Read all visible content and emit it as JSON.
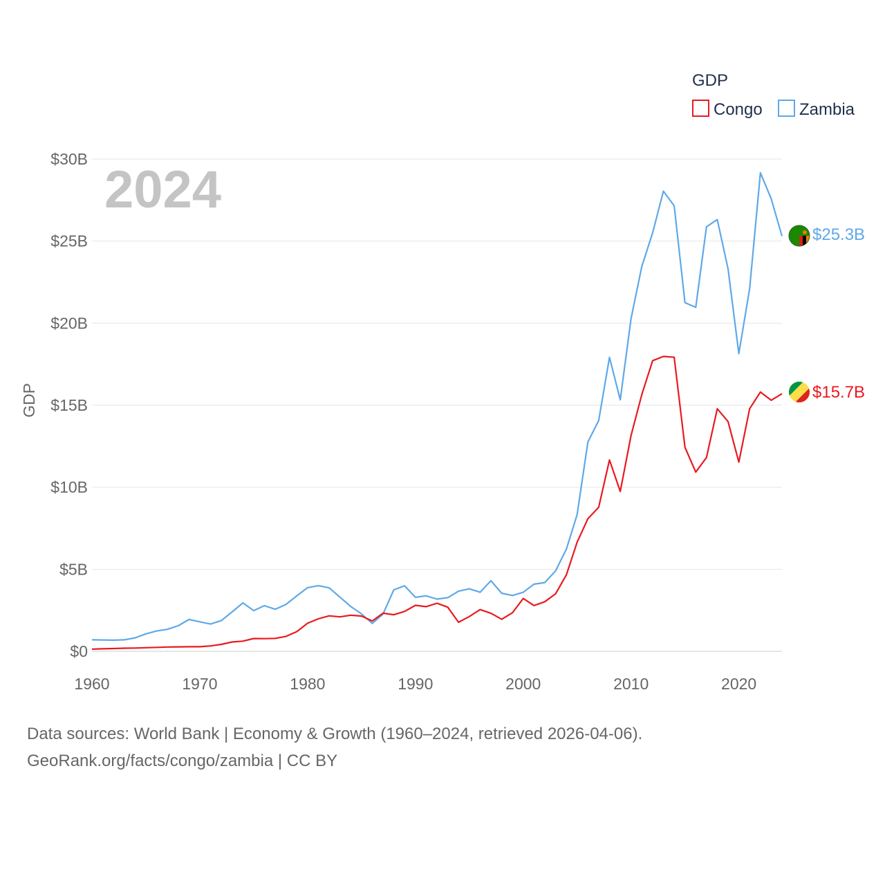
{
  "chart_data": {
    "type": "line",
    "title": "GDP",
    "year_label": "2024",
    "ylabel": "GDP",
    "xlabel": "",
    "xlim": [
      1960,
      2024
    ],
    "ylim": [
      0,
      30
    ],
    "x_ticks": [
      1960,
      1970,
      1980,
      1990,
      2000,
      2010,
      2020
    ],
    "x_tick_labels": [
      "1960",
      "1970",
      "1980",
      "1990",
      "2000",
      "2010",
      "2020"
    ],
    "y_ticks": [
      0,
      5,
      10,
      15,
      20,
      25,
      30
    ],
    "y_tick_labels": [
      "$0",
      "$5B",
      "$10B",
      "$15B",
      "$20B",
      "$25B",
      "$30B"
    ],
    "grid": true,
    "legend_position": "top-right",
    "units": "billions USD",
    "x": [
      1960,
      1961,
      1962,
      1963,
      1964,
      1965,
      1966,
      1967,
      1968,
      1969,
      1970,
      1971,
      1972,
      1973,
      1974,
      1975,
      1976,
      1977,
      1978,
      1979,
      1980,
      1981,
      1982,
      1983,
      1984,
      1985,
      1986,
      1987,
      1988,
      1989,
      1990,
      1991,
      1992,
      1993,
      1994,
      1995,
      1996,
      1997,
      1998,
      1999,
      2000,
      2001,
      2002,
      2003,
      2004,
      2005,
      2006,
      2007,
      2008,
      2009,
      2010,
      2011,
      2012,
      2013,
      2014,
      2015,
      2016,
      2017,
      2018,
      2019,
      2020,
      2021,
      2022,
      2023,
      2024
    ],
    "series": [
      {
        "name": "Congo",
        "color": "#e8191f",
        "end_label": "$15.7B",
        "values": [
          0.13,
          0.15,
          0.17,
          0.19,
          0.2,
          0.22,
          0.24,
          0.26,
          0.27,
          0.28,
          0.28,
          0.33,
          0.42,
          0.57,
          0.62,
          0.78,
          0.77,
          0.79,
          0.91,
          1.2,
          1.71,
          1.98,
          2.16,
          2.1,
          2.2,
          2.15,
          1.85,
          2.32,
          2.23,
          2.43,
          2.8,
          2.72,
          2.93,
          2.69,
          1.77,
          2.12,
          2.54,
          2.32,
          1.95,
          2.35,
          3.22,
          2.79,
          3.02,
          3.5,
          4.65,
          6.65,
          8.08,
          8.78,
          11.66,
          9.74,
          13.15,
          15.65,
          17.71,
          17.97,
          17.92,
          12.43,
          10.92,
          11.81,
          14.78,
          14.0,
          11.53,
          14.78,
          15.8,
          15.3,
          15.7
        ]
      },
      {
        "name": "Zambia",
        "color": "#5fa8e8",
        "end_label": "$25.3B",
        "values": [
          0.7,
          0.69,
          0.68,
          0.7,
          0.82,
          1.06,
          1.24,
          1.34,
          1.56,
          1.94,
          1.8,
          1.66,
          1.87,
          2.4,
          2.95,
          2.48,
          2.78,
          2.56,
          2.86,
          3.38,
          3.88,
          4.0,
          3.87,
          3.3,
          2.73,
          2.28,
          1.7,
          2.27,
          3.75,
          3.99,
          3.29,
          3.38,
          3.18,
          3.27,
          3.66,
          3.81,
          3.6,
          4.3,
          3.54,
          3.4,
          3.6,
          4.09,
          4.19,
          4.9,
          6.22,
          8.33,
          12.76,
          14.06,
          17.91,
          15.33,
          20.27,
          23.46,
          25.5,
          28.04,
          27.15,
          21.25,
          20.96,
          25.87,
          26.31,
          23.31,
          18.14,
          22.1,
          29.16,
          27.58,
          25.3
        ]
      }
    ]
  },
  "source": {
    "line1": "Data sources: World Bank | Economy & Growth (1960–2024, retrieved 2026-04-06).",
    "line2": "GeoRank.org/facts/congo/zambia | CC BY"
  }
}
